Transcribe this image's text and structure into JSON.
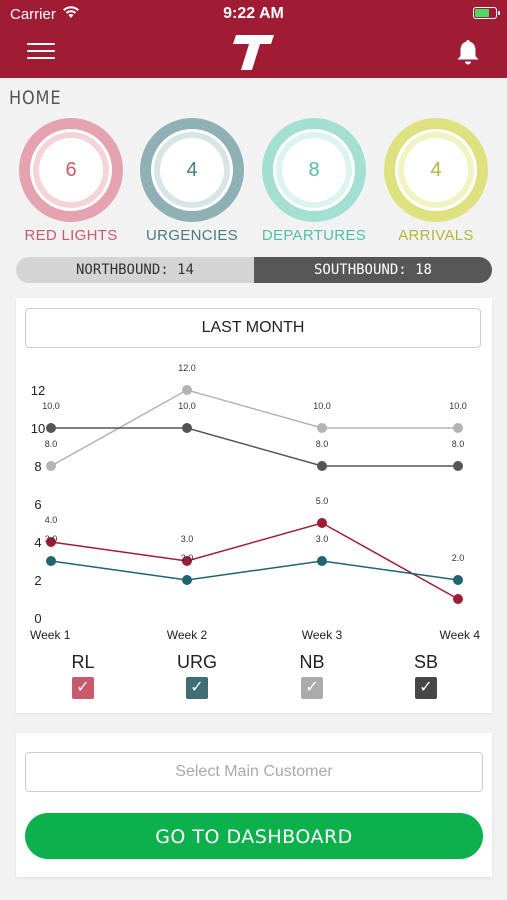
{
  "status_bar": {
    "carrier": "Carrier",
    "time": "9:22 AM"
  },
  "header": {
    "logo_icon": "t-logo-icon",
    "menu_icon": "hamburger-icon",
    "bell_icon": "bell-icon"
  },
  "page_title": "HOME",
  "stats": [
    {
      "value": "6",
      "label": "RED LIGHTS",
      "color": "#c9596d",
      "ring_outer": "#e4a3ae",
      "ring_inner": "#f4d4d9"
    },
    {
      "value": "4",
      "label": "URGENCIES",
      "color": "#4a7a80",
      "ring_outer": "#8fb0b4",
      "ring_inner": "#d8e5e6"
    },
    {
      "value": "8",
      "label": "DEPARTURES",
      "color": "#4fbfa8",
      "ring_outer": "#a3e0d2",
      "ring_inner": "#dcf4ee"
    },
    {
      "value": "4",
      "label": "ARRIVALS",
      "color": "#b4b83a",
      "ring_outer": "#dde27e",
      "ring_inner": "#f1f4c2"
    }
  ],
  "direction": {
    "northbound": "NORTHBOUND: 14",
    "southbound": "SOUTHBOUND: 18"
  },
  "chart_card": {
    "period": "LAST MONTH"
  },
  "chart_data": {
    "type": "line",
    "categories": [
      "Week 1",
      "Week 2",
      "Week 3",
      "Week 4"
    ],
    "ylim": [
      0,
      12
    ],
    "yticks": [
      "0",
      "2",
      "4",
      "6",
      "8",
      "10",
      "12"
    ],
    "series": [
      {
        "name": "NB",
        "values": [
          8,
          12,
          10,
          10
        ],
        "labels": [
          "8.0",
          "12.0",
          "10.0",
          "10.0"
        ],
        "color": "#b3b3b3"
      },
      {
        "name": "SB",
        "values": [
          10,
          10,
          8,
          8
        ],
        "labels": [
          "10.0",
          "10.0",
          "8.0",
          "8.0"
        ],
        "color": "#555555"
      },
      {
        "name": "RL",
        "values": [
          4,
          3,
          5,
          1
        ],
        "labels": [
          "4.0",
          "3.0",
          "5.0",
          ""
        ],
        "color": "#a01c34"
      },
      {
        "name": "URG",
        "values": [
          3,
          2,
          3,
          2
        ],
        "labels": [
          "3.0",
          "2.0",
          "3.0",
          "2.0"
        ],
        "color": "#1f6470"
      }
    ]
  },
  "legend": [
    {
      "label": "RL",
      "color": "#c9596d"
    },
    {
      "label": "URG",
      "color": "#3f6d73"
    },
    {
      "label": "NB",
      "color": "#ababab"
    },
    {
      "label": "SB",
      "color": "#474747"
    }
  ],
  "customer": {
    "placeholder": "Select Main Customer"
  },
  "dashboard_button": "GO TO DASHBOARD"
}
